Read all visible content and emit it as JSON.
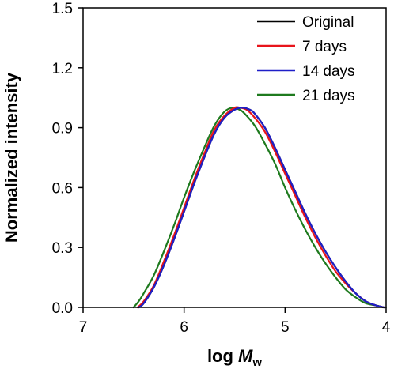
{
  "chart_data": {
    "type": "line",
    "xlabel_prefix": "log ",
    "xlabel_var": "M",
    "xlabel_sub": "w",
    "ylabel": "Normalized intensity",
    "xlim": [
      7,
      4
    ],
    "ylim": [
      0,
      1.5
    ],
    "x_reversed": true,
    "x_ticks": [
      "7",
      "6",
      "5",
      "4"
    ],
    "y_ticks": [
      "0.0",
      "0.3",
      "0.6",
      "0.9",
      "1.2",
      "1.5"
    ],
    "legend_position": "top-right",
    "series": [
      {
        "name": "Original",
        "color": "#000000",
        "x": [
          6.45,
          6.4,
          6.3,
          6.2,
          6.1,
          6.0,
          5.9,
          5.8,
          5.7,
          5.6,
          5.5,
          5.42,
          5.35,
          5.3,
          5.2,
          5.1,
          5.0,
          4.9,
          4.8,
          4.7,
          4.6,
          4.5,
          4.4,
          4.3,
          4.2,
          4.1,
          4.02
        ],
        "y": [
          0.0,
          0.02,
          0.1,
          0.21,
          0.34,
          0.48,
          0.62,
          0.75,
          0.87,
          0.95,
          0.99,
          1.0,
          0.99,
          0.97,
          0.9,
          0.8,
          0.69,
          0.58,
          0.47,
          0.37,
          0.28,
          0.2,
          0.13,
          0.07,
          0.03,
          0.01,
          0.0
        ]
      },
      {
        "name": "7 days",
        "color": "#e8141b",
        "x": [
          6.46,
          6.4,
          6.3,
          6.2,
          6.1,
          6.0,
          5.9,
          5.8,
          5.7,
          5.6,
          5.5,
          5.45,
          5.38,
          5.3,
          5.2,
          5.1,
          5.0,
          4.9,
          4.8,
          4.7,
          4.6,
          4.5,
          4.4,
          4.3,
          4.2,
          4.1,
          4.02
        ],
        "y": [
          0.0,
          0.03,
          0.11,
          0.23,
          0.36,
          0.5,
          0.64,
          0.77,
          0.89,
          0.96,
          1.0,
          1.0,
          0.99,
          0.95,
          0.88,
          0.78,
          0.67,
          0.56,
          0.45,
          0.35,
          0.26,
          0.18,
          0.12,
          0.07,
          0.03,
          0.01,
          0.0
        ]
      },
      {
        "name": "14 days",
        "color": "#1f1fc8",
        "x": [
          6.45,
          6.4,
          6.3,
          6.2,
          6.1,
          6.0,
          5.9,
          5.8,
          5.7,
          5.6,
          5.5,
          5.42,
          5.35,
          5.3,
          5.2,
          5.1,
          5.0,
          4.9,
          4.8,
          4.7,
          4.6,
          4.5,
          4.4,
          4.3,
          4.2,
          4.1,
          4.02
        ],
        "y": [
          0.0,
          0.02,
          0.1,
          0.21,
          0.34,
          0.48,
          0.62,
          0.75,
          0.87,
          0.95,
          0.99,
          1.0,
          0.99,
          0.97,
          0.9,
          0.8,
          0.69,
          0.58,
          0.47,
          0.37,
          0.28,
          0.2,
          0.13,
          0.07,
          0.03,
          0.01,
          0.0
        ]
      },
      {
        "name": "21 days",
        "color": "#1e7a1e",
        "x": [
          6.5,
          6.45,
          6.4,
          6.3,
          6.2,
          6.1,
          6.0,
          5.9,
          5.8,
          5.7,
          5.6,
          5.52,
          5.45,
          5.4,
          5.3,
          5.2,
          5.1,
          5.0,
          4.9,
          4.8,
          4.7,
          4.6,
          4.5,
          4.4,
          4.3,
          4.2,
          4.1,
          4.03
        ],
        "y": [
          0.0,
          0.03,
          0.07,
          0.16,
          0.28,
          0.41,
          0.55,
          0.68,
          0.8,
          0.91,
          0.98,
          1.0,
          0.99,
          0.97,
          0.91,
          0.82,
          0.72,
          0.6,
          0.49,
          0.39,
          0.3,
          0.22,
          0.15,
          0.09,
          0.05,
          0.02,
          0.01,
          0.0
        ]
      }
    ]
  }
}
